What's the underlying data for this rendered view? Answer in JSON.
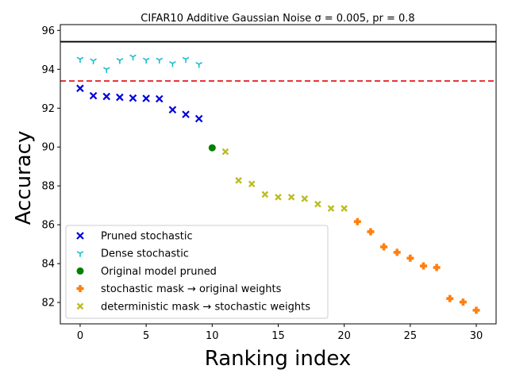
{
  "chart_data": {
    "type": "scatter",
    "title": "CIFAR10 Additive Gaussian Noise σ = 0.005, pr = 0.8",
    "xlabel": "Ranking index",
    "ylabel": "Accuracy",
    "xlim": [
      -1.5,
      31.5
    ],
    "ylim": [
      80.9,
      96.3
    ],
    "xticks": [
      "0",
      "5",
      "10",
      "15",
      "20",
      "25",
      "30"
    ],
    "yticks": [
      "82",
      "84",
      "86",
      "88",
      "90",
      "92",
      "94",
      "96"
    ],
    "grid": false,
    "legend_position": "lower-left",
    "reference_lines": [
      {
        "y": 95.42,
        "color": "#000000",
        "style": "solid"
      },
      {
        "y": 93.4,
        "color": "#e41a1c",
        "style": "dashed"
      }
    ],
    "series": [
      {
        "name": "Pruned stochastic",
        "marker": "x",
        "color": "#0000dd",
        "x": [
          0,
          1,
          2,
          3,
          4,
          5,
          6,
          7,
          8,
          9
        ],
        "y": [
          93.02,
          92.64,
          92.6,
          92.56,
          92.52,
          92.5,
          92.48,
          91.92,
          91.68,
          91.46
        ]
      },
      {
        "name": "Dense stochastic",
        "marker": "tri_down",
        "color": "#17becf",
        "x": [
          0,
          1,
          2,
          3,
          4,
          5,
          6,
          7,
          8,
          9
        ],
        "y": [
          94.52,
          94.44,
          94.0,
          94.46,
          94.64,
          94.48,
          94.48,
          94.3,
          94.52,
          94.26
        ]
      },
      {
        "name": "Original model pruned",
        "marker": "circle",
        "color": "#008000",
        "x": [
          10
        ],
        "y": [
          89.96
        ]
      },
      {
        "name": "stochastic mask → original weights",
        "marker": "plus",
        "color": "#ff7f0e",
        "x": [
          21,
          22,
          23,
          24,
          25,
          26,
          27,
          28,
          29,
          30
        ],
        "y": [
          86.16,
          85.64,
          84.86,
          84.58,
          84.28,
          83.88,
          83.8,
          82.2,
          82.02,
          81.6
        ]
      },
      {
        "name": "deterministic mask → stochastic weights",
        "marker": "X",
        "color": "#bcbd22",
        "x": [
          11,
          12,
          13,
          14,
          15,
          16,
          17,
          18,
          19,
          20
        ],
        "y": [
          89.76,
          88.28,
          88.1,
          87.56,
          87.42,
          87.42,
          87.34,
          87.06,
          86.84,
          86.84
        ]
      }
    ]
  }
}
